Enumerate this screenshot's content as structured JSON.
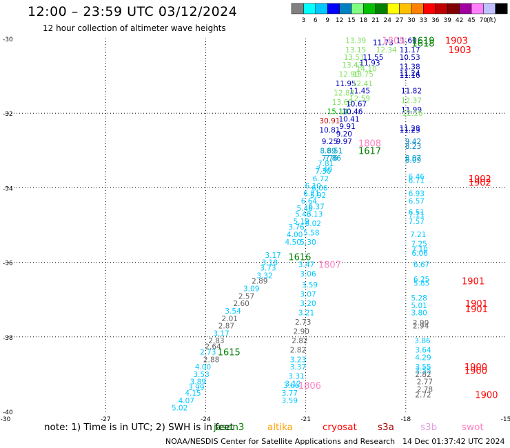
{
  "header": {
    "title": "12:00 – 23:59 UTC 03/12/2024",
    "subtitle": "12 hour collection of altimeter wave heights"
  },
  "colorbar": {
    "unit": "(ft)",
    "colors": [
      "#808080",
      "#00ffff",
      "#00c8ff",
      "#0000ff",
      "#0080c0",
      "#80ff80",
      "#00c000",
      "#008000",
      "#ffff00",
      "#ffc000",
      "#ff8000",
      "#ff0000",
      "#c00000",
      "#800000",
      "#a000a0",
      "#ff80ff",
      "#c0c0ff",
      "#000000"
    ],
    "labels": [
      "3",
      "6",
      "9",
      "12",
      "15",
      "18",
      "21",
      "24",
      "27",
      "30",
      "33",
      "36",
      "39",
      "42",
      "45",
      "70"
    ]
  },
  "note": "note:  1) Time is in UTC;  2) SWH is in feet",
  "satellites": [
    {
      "name": "jason3",
      "color": "#008000"
    },
    {
      "name": "altika",
      "color": "#ffa000"
    },
    {
      "name": "cryosat",
      "color": "#ff0000"
    },
    {
      "name": "s3a",
      "color": "#a00000"
    },
    {
      "name": "s3b",
      "color": "#e0a0e0"
    },
    {
      "name": "swot",
      "color": "#ff80c0"
    }
  ],
  "footer": {
    "credit": "NOAA/NESDIS Center for Satellite Applications and Research",
    "timestamp": "14 Dec 01:37:42 UTC 2024"
  },
  "chart_data": {
    "type": "scatter",
    "xlim": [
      -30,
      -15
    ],
    "ylim": [
      -40,
      -30
    ],
    "x_ticks": [
      -30,
      -27,
      -24,
      -21,
      -18,
      -15
    ],
    "y_ticks": [
      -30,
      -32,
      -34,
      -36,
      -38,
      -40
    ],
    "grid": true,
    "pass_labels": [
      {
        "text": "1809",
        "x": -18.37,
        "y": -30.05,
        "color": "#ff80c0"
      },
      {
        "text": "1619",
        "x": -17.48,
        "y": -30.05,
        "color": "#008000"
      },
      {
        "text": "1903",
        "x": -16.48,
        "y": -30.05,
        "color": "#ff0000"
      },
      {
        "text": "1618",
        "x": -17.48,
        "y": -30.12,
        "color": "#008000"
      },
      {
        "text": "1903",
        "x": -16.38,
        "y": -30.3,
        "color": "#ff0000"
      },
      {
        "text": "1808",
        "x": -19.08,
        "y": -32.8,
        "color": "#ff80c0"
      },
      {
        "text": "1617",
        "x": -19.08,
        "y": -33.0,
        "color": "#008000"
      },
      {
        "text": "1902",
        "x": -15.78,
        "y": -33.75,
        "color": "#ff0000"
      },
      {
        "text": "1902",
        "x": -15.78,
        "y": -33.85,
        "color": "#ff0000"
      },
      {
        "text": "1616",
        "x": -21.18,
        "y": -35.85,
        "color": "#008000"
      },
      {
        "text": "1807",
        "x": -20.28,
        "y": -36.05,
        "color": "#ff80c0"
      },
      {
        "text": "1901",
        "x": -15.98,
        "y": -36.5,
        "color": "#ff0000"
      },
      {
        "text": "1901",
        "x": -15.88,
        "y": -37.1,
        "color": "#ff0000"
      },
      {
        "text": "1901",
        "x": -15.88,
        "y": -37.25,
        "color": "#ff0000"
      },
      {
        "text": "1615",
        "x": -23.3,
        "y": -38.4,
        "color": "#008000"
      },
      {
        "text": "1900",
        "x": -15.9,
        "y": -38.8,
        "color": "#ff0000"
      },
      {
        "text": "1900",
        "x": -15.9,
        "y": -38.9,
        "color": "#ff0000"
      },
      {
        "text": "1806",
        "x": -20.88,
        "y": -39.3,
        "color": "#ff80c0"
      },
      {
        "text": "1900",
        "x": -15.58,
        "y": -39.55,
        "color": "#ff0000"
      }
    ],
    "points": [
      {
        "v": "13.39",
        "x": -19.5,
        "y": -30.05,
        "c": "#80e060"
      },
      {
        "v": "11.73",
        "x": -18.68,
        "y": -30.1,
        "c": "#0000c0"
      },
      {
        "v": "11.60",
        "x": -17.98,
        "y": -30.05,
        "c": "#0000c0"
      },
      {
        "v": "13.15",
        "x": -19.5,
        "y": -30.3,
        "c": "#80e060"
      },
      {
        "v": "12.34",
        "x": -18.58,
        "y": -30.3,
        "c": "#80e060"
      },
      {
        "v": "11.17",
        "x": -17.88,
        "y": -30.3,
        "c": "#0000c0"
      },
      {
        "v": "13.51",
        "x": -19.55,
        "y": -30.5,
        "c": "#80e060"
      },
      {
        "v": "11.55",
        "x": -18.98,
        "y": -30.5,
        "c": "#0000c0"
      },
      {
        "v": "10.53",
        "x": -17.88,
        "y": -30.5,
        "c": "#0000c0"
      },
      {
        "v": "13.43",
        "x": -19.6,
        "y": -30.7,
        "c": "#80e060"
      },
      {
        "v": "11.93",
        "x": -19.08,
        "y": -30.65,
        "c": "#0000c0"
      },
      {
        "v": "11.38",
        "x": -17.88,
        "y": -30.75,
        "c": "#0000c0"
      },
      {
        "v": "14.10",
        "x": -19.18,
        "y": -30.8,
        "c": "#80e060"
      },
      {
        "v": "12.90",
        "x": -19.7,
        "y": -30.95,
        "c": "#80e060"
      },
      {
        "v": "13.75",
        "x": -19.28,
        "y": -30.95,
        "c": "#80e060"
      },
      {
        "v": "11.24",
        "x": -17.88,
        "y": -30.92,
        "c": "#0000c0"
      },
      {
        "v": "11.16",
        "x": -17.88,
        "y": -30.98,
        "c": "#0000c0"
      },
      {
        "v": "11.95",
        "x": -19.8,
        "y": -31.2,
        "c": "#0000c0"
      },
      {
        "v": "12.41",
        "x": -19.3,
        "y": -31.2,
        "c": "#80e060"
      },
      {
        "v": "11.45",
        "x": -19.38,
        "y": -31.4,
        "c": "#0000c0"
      },
      {
        "v": "11.82",
        "x": -17.83,
        "y": -31.4,
        "c": "#0000c0"
      },
      {
        "v": "12.83",
        "x": -19.85,
        "y": -31.45,
        "c": "#80e060"
      },
      {
        "v": "12.59",
        "x": -19.38,
        "y": -31.6,
        "c": "#80e060"
      },
      {
        "v": "12.37",
        "x": -17.83,
        "y": -31.65,
        "c": "#80e060"
      },
      {
        "v": "13.69",
        "x": -19.9,
        "y": -31.7,
        "c": "#80e060"
      },
      {
        "v": "10.67",
        "x": -19.48,
        "y": -31.75,
        "c": "#0000c0"
      },
      {
        "v": "15.14",
        "x": -20.05,
        "y": -31.95,
        "c": "#00c000"
      },
      {
        "v": "10.46",
        "x": -19.6,
        "y": -31.95,
        "c": "#0000c0"
      },
      {
        "v": "11.99",
        "x": -17.83,
        "y": -31.9,
        "c": "#0000c0"
      },
      {
        "v": "12.16",
        "x": -17.8,
        "y": -32.0,
        "c": "#80e060"
      },
      {
        "v": "30.91",
        "x": -20.28,
        "y": -32.2,
        "c": "#c00000"
      },
      {
        "v": "10.41",
        "x": -19.7,
        "y": -32.15,
        "c": "#0000c0"
      },
      {
        "v": "9.91",
        "x": -19.75,
        "y": -32.35,
        "c": "#0000c0"
      },
      {
        "v": "10.81",
        "x": -20.28,
        "y": -32.45,
        "c": "#0000c0"
      },
      {
        "v": "11.28",
        "x": -17.88,
        "y": -32.4,
        "c": "#0000c0"
      },
      {
        "v": "11.23",
        "x": -17.88,
        "y": -32.45,
        "c": "#0000c0"
      },
      {
        "v": "9.20",
        "x": -19.85,
        "y": -32.55,
        "c": "#0000c0"
      },
      {
        "v": "9.25",
        "x": -20.28,
        "y": -32.75,
        "c": "#0000c0"
      },
      {
        "v": "9.97",
        "x": -19.85,
        "y": -32.75,
        "c": "#0000c0"
      },
      {
        "v": "9.42",
        "x": -17.78,
        "y": -32.75,
        "c": "#0080c0"
      },
      {
        "v": "8.23",
        "x": -17.78,
        "y": -32.88,
        "c": "#0080c0"
      },
      {
        "v": "8.69",
        "x": -20.33,
        "y": -33.0,
        "c": "#00a0d0"
      },
      {
        "v": "8.51",
        "x": -20.13,
        "y": -33.0,
        "c": "#00a0d0"
      },
      {
        "v": "8.07",
        "x": -17.78,
        "y": -33.2,
        "c": "#00a0d0"
      },
      {
        "v": "8.09",
        "x": -17.78,
        "y": -33.25,
        "c": "#00a0d0"
      },
      {
        "v": "7.76",
        "x": -20.28,
        "y": -33.2,
        "c": "#00a0d0"
      },
      {
        "v": "7.86",
        "x": -20.18,
        "y": -33.2,
        "c": "#00a0d0"
      },
      {
        "v": "7.81",
        "x": -20.4,
        "y": -33.35,
        "c": "#00c8ff"
      },
      {
        "v": "7.40",
        "x": -20.45,
        "y": -33.5,
        "c": "#00c8ff"
      },
      {
        "v": "7.30",
        "x": -20.48,
        "y": -33.55,
        "c": "#00c8ff"
      },
      {
        "v": "6.72",
        "x": -20.55,
        "y": -33.75,
        "c": "#00c8ff"
      },
      {
        "v": "6.46",
        "x": -17.68,
        "y": -33.7,
        "c": "#00c8ff"
      },
      {
        "v": "6.71",
        "x": -17.68,
        "y": -33.8,
        "c": "#00c8ff"
      },
      {
        "v": "6.10",
        "x": -20.78,
        "y": -33.95,
        "c": "#00c8ff"
      },
      {
        "v": "6.06",
        "x": -20.58,
        "y": -34.0,
        "c": "#00c8ff"
      },
      {
        "v": "6.21",
        "x": -20.83,
        "y": -34.15,
        "c": "#00c8ff"
      },
      {
        "v": "5.92",
        "x": -20.63,
        "y": -34.2,
        "c": "#00c8ff"
      },
      {
        "v": "6.93",
        "x": -17.68,
        "y": -34.15,
        "c": "#00c8ff"
      },
      {
        "v": "6.64",
        "x": -20.9,
        "y": -34.35,
        "c": "#00c8ff"
      },
      {
        "v": "6.57",
        "x": -17.68,
        "y": -34.35,
        "c": "#00c8ff"
      },
      {
        "v": "6.37",
        "x": -20.68,
        "y": -34.5,
        "c": "#00c8ff"
      },
      {
        "v": "5.46",
        "x": -21.03,
        "y": -34.55,
        "c": "#00c8ff"
      },
      {
        "v": "6.51",
        "x": -17.68,
        "y": -34.65,
        "c": "#00c8ff"
      },
      {
        "v": "5.43",
        "x": -21.08,
        "y": -34.7,
        "c": "#00c8ff"
      },
      {
        "v": "6.13",
        "x": -20.73,
        "y": -34.7,
        "c": "#00c8ff"
      },
      {
        "v": "7.11",
        "x": -17.68,
        "y": -34.72,
        "c": "#00c8ff"
      },
      {
        "v": "5.19",
        "x": -21.13,
        "y": -34.9,
        "c": "#00c8ff"
      },
      {
        "v": "6.02",
        "x": -20.78,
        "y": -34.95,
        "c": "#00c8ff"
      },
      {
        "v": "7.57",
        "x": -17.68,
        "y": -34.9,
        "c": "#00c8ff"
      },
      {
        "v": "3.76",
        "x": -21.28,
        "y": -35.05,
        "c": "#00c8ff"
      },
      {
        "v": "5.58",
        "x": -20.83,
        "y": -35.2,
        "c": "#00c8ff"
      },
      {
        "v": "4.00",
        "x": -21.33,
        "y": -35.25,
        "c": "#00c8ff"
      },
      {
        "v": "7.21",
        "x": -17.63,
        "y": -35.25,
        "c": "#00c8ff"
      },
      {
        "v": "4.50",
        "x": -21.38,
        "y": -35.45,
        "c": "#00c8ff"
      },
      {
        "v": "5.30",
        "x": -20.93,
        "y": -35.45,
        "c": "#00c8ff"
      },
      {
        "v": "7.25",
        "x": -17.6,
        "y": -35.5,
        "c": "#00c8ff"
      },
      {
        "v": "7.10",
        "x": -17.58,
        "y": -35.65,
        "c": "#00c8ff"
      },
      {
        "v": "3.17",
        "x": -21.98,
        "y": -35.8,
        "c": "#00c8ff"
      },
      {
        "v": "3.18",
        "x": -22.08,
        "y": -36.0,
        "c": "#00c8ff"
      },
      {
        "v": "6.06",
        "x": -17.58,
        "y": -35.75,
        "c": "#00c8ff"
      },
      {
        "v": "3.47",
        "x": -20.98,
        "y": -36.05,
        "c": "#00c8ff"
      },
      {
        "v": "6.67",
        "x": -17.53,
        "y": -36.05,
        "c": "#00c8ff"
      },
      {
        "v": "3.73",
        "x": -22.13,
        "y": -36.15,
        "c": "#00c8ff"
      },
      {
        "v": "3.06",
        "x": -20.93,
        "y": -36.3,
        "c": "#00c8ff"
      },
      {
        "v": "3.32",
        "x": -22.23,
        "y": -36.35,
        "c": "#00c8ff"
      },
      {
        "v": "2.89",
        "x": -22.38,
        "y": -36.5,
        "c": "#606060"
      },
      {
        "v": "6.25",
        "x": -17.53,
        "y": -36.45,
        "c": "#00c8ff"
      },
      {
        "v": "5.85",
        "x": -17.53,
        "y": -36.55,
        "c": "#00c8ff"
      },
      {
        "v": "3.59",
        "x": -20.88,
        "y": -36.6,
        "c": "#00c8ff"
      },
      {
        "v": "3.09",
        "x": -22.63,
        "y": -36.7,
        "c": "#00c8ff"
      },
      {
        "v": "2.57",
        "x": -22.78,
        "y": -36.9,
        "c": "#606060"
      },
      {
        "v": "3.07",
        "x": -20.93,
        "y": -36.85,
        "c": "#00c8ff"
      },
      {
        "v": "5.28",
        "x": -17.6,
        "y": -36.95,
        "c": "#00c8ff"
      },
      {
        "v": "2.60",
        "x": -22.93,
        "y": -37.1,
        "c": "#606060"
      },
      {
        "v": "3.20",
        "x": -20.93,
        "y": -37.1,
        "c": "#00c8ff"
      },
      {
        "v": "5.01",
        "x": -17.6,
        "y": -37.15,
        "c": "#00c8ff"
      },
      {
        "v": "3.54",
        "x": -23.18,
        "y": -37.3,
        "c": "#00c8ff"
      },
      {
        "v": "3.21",
        "x": -20.98,
        "y": -37.35,
        "c": "#00c8ff"
      },
      {
        "v": "3.80",
        "x": -17.6,
        "y": -37.35,
        "c": "#00c8ff"
      },
      {
        "v": "2.01",
        "x": -23.28,
        "y": -37.5,
        "c": "#606060"
      },
      {
        "v": "2.73",
        "x": -21.08,
        "y": -37.6,
        "c": "#606060"
      },
      {
        "v": "2.90",
        "x": -17.55,
        "y": -37.62,
        "c": "#606060"
      },
      {
        "v": "2.87",
        "x": -23.38,
        "y": -37.7,
        "c": "#606060"
      },
      {
        "v": "2.94",
        "x": -17.55,
        "y": -37.7,
        "c": "#606060"
      },
      {
        "v": "3.17",
        "x": -23.53,
        "y": -37.9,
        "c": "#00c8ff"
      },
      {
        "v": "2.90",
        "x": -21.13,
        "y": -37.85,
        "c": "#606060"
      },
      {
        "v": "2.83",
        "x": -23.68,
        "y": -38.1,
        "c": "#606060"
      },
      {
        "v": "2.82",
        "x": -21.18,
        "y": -38.1,
        "c": "#606060"
      },
      {
        "v": "3.86",
        "x": -17.5,
        "y": -38.1,
        "c": "#00c8ff"
      },
      {
        "v": "2.64",
        "x": -23.78,
        "y": -38.25,
        "c": "#606060"
      },
      {
        "v": "2.82",
        "x": -21.23,
        "y": -38.35,
        "c": "#606060"
      },
      {
        "v": "3.64",
        "x": -17.48,
        "y": -38.35,
        "c": "#00c8ff"
      },
      {
        "v": "2.73",
        "x": -23.93,
        "y": -38.4,
        "c": "#00c8ff"
      },
      {
        "v": "2.88",
        "x": -23.83,
        "y": -38.6,
        "c": "#606060"
      },
      {
        "v": "3.23",
        "x": -21.23,
        "y": -38.6,
        "c": "#00c8ff"
      },
      {
        "v": "4.29",
        "x": -17.48,
        "y": -38.55,
        "c": "#00c8ff"
      },
      {
        "v": "4.00",
        "x": -24.08,
        "y": -38.8,
        "c": "#00c8ff"
      },
      {
        "v": "3.37",
        "x": -21.23,
        "y": -38.8,
        "c": "#00c8ff"
      },
      {
        "v": "3.55",
        "x": -17.48,
        "y": -38.8,
        "c": "#00c8ff"
      },
      {
        "v": "3.55",
        "x": -17.48,
        "y": -38.9,
        "c": "#00c8ff"
      },
      {
        "v": "2.82",
        "x": -17.48,
        "y": -39.0,
        "c": "#606060"
      },
      {
        "v": "3.53",
        "x": -24.13,
        "y": -39.0,
        "c": "#00c8ff"
      },
      {
        "v": "3.31",
        "x": -21.28,
        "y": -39.05,
        "c": "#00c8ff"
      },
      {
        "v": "3.89",
        "x": -24.23,
        "y": -39.2,
        "c": "#00c8ff"
      },
      {
        "v": "2.77",
        "x": -17.43,
        "y": -39.2,
        "c": "#606060"
      },
      {
        "v": "3.12",
        "x": -21.38,
        "y": -39.25,
        "c": "#00c8ff"
      },
      {
        "v": "3.66",
        "x": -21.43,
        "y": -39.3,
        "c": "#00c8ff"
      },
      {
        "v": "3.99",
        "x": -24.28,
        "y": -39.35,
        "c": "#00c8ff"
      },
      {
        "v": "2.78",
        "x": -17.43,
        "y": -39.4,
        "c": "#606060"
      },
      {
        "v": "4.15",
        "x": -24.38,
        "y": -39.5,
        "c": "#00c8ff"
      },
      {
        "v": "3.77",
        "x": -21.48,
        "y": -39.5,
        "c": "#00c8ff"
      },
      {
        "v": "4.07",
        "x": -24.58,
        "y": -39.7,
        "c": "#00c8ff"
      },
      {
        "v": "2.72",
        "x": -17.48,
        "y": -39.55,
        "c": "#606060"
      },
      {
        "v": "3.59",
        "x": -21.48,
        "y": -39.7,
        "c": "#00c8ff"
      },
      {
        "v": "5.02",
        "x": -24.78,
        "y": -39.9,
        "c": "#00c8ff"
      }
    ]
  }
}
